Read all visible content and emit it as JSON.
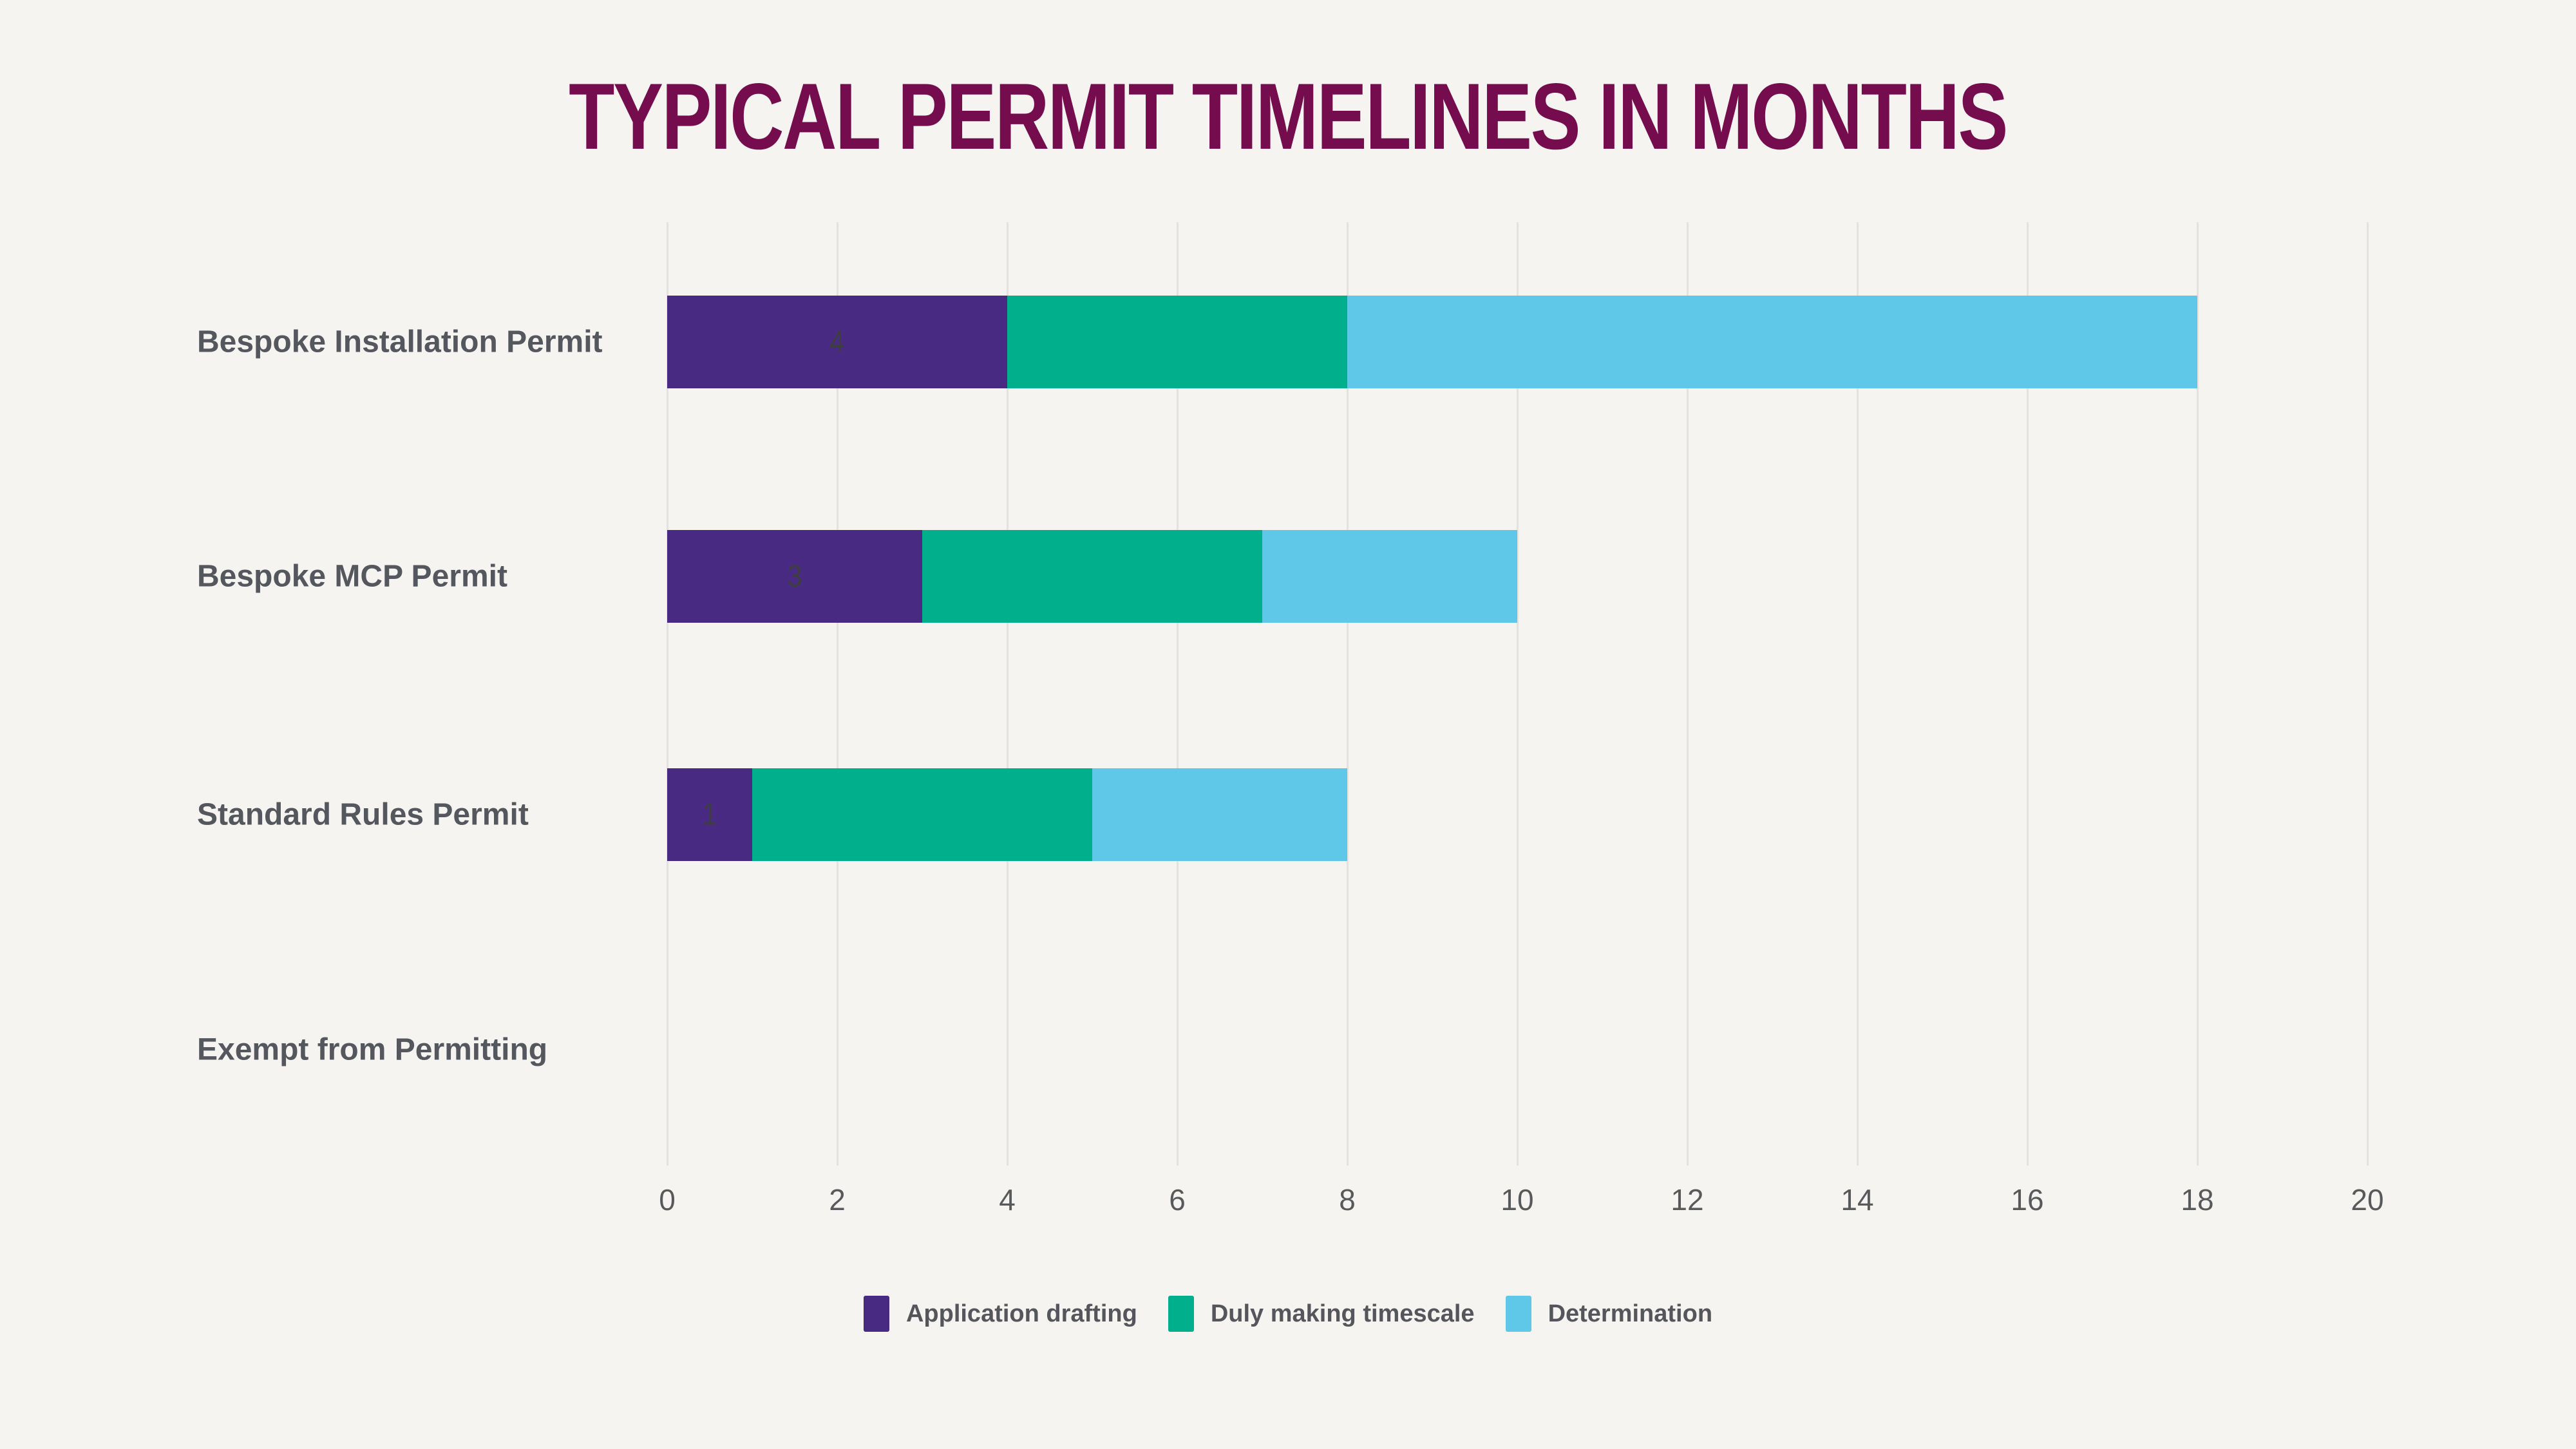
{
  "title": "TYPICAL PERMIT TIMELINES IN MONTHS",
  "colors": {
    "background": "#F5F4F1",
    "title": "#750C4E",
    "gridline": "#E3E2DF",
    "category_label": "#55575E",
    "tick_label": "#58595B",
    "segment_label": "#3E3E3E",
    "legend_label": "#54565B"
  },
  "chart_data": {
    "type": "bar",
    "orientation": "horizontal",
    "stacked": true,
    "title": "TYPICAL PERMIT TIMELINES IN MONTHS",
    "categories": [
      "Bespoke Installation Permit",
      "Bespoke MCP Permit",
      "Standard Rules Permit",
      "Exempt from Permitting"
    ],
    "series": [
      {
        "name": "Application drafting",
        "color": "#482A82",
        "values": [
          4,
          3,
          1,
          0
        ]
      },
      {
        "name": "Duly making timescale",
        "color": "#01AF8C",
        "values": [
          4,
          4,
          4,
          0
        ]
      },
      {
        "name": "Determination",
        "color": "#5FC8E8",
        "values": [
          10,
          3,
          3,
          0
        ]
      }
    ],
    "totals": [
      18,
      10,
      8,
      0
    ],
    "visible_segment_labels": [
      {
        "category_index": 0,
        "series_index": 0,
        "text": "4"
      },
      {
        "category_index": 1,
        "series_index": 0,
        "text": "3"
      },
      {
        "category_index": 2,
        "series_index": 0,
        "text": "1"
      }
    ],
    "xlabel": "",
    "ylabel": "",
    "x_ticks": [
      0,
      2,
      4,
      6,
      8,
      10,
      12,
      14,
      16,
      18,
      20
    ],
    "xlim": [
      0,
      20
    ],
    "grid": true,
    "legend_position": "bottom"
  }
}
